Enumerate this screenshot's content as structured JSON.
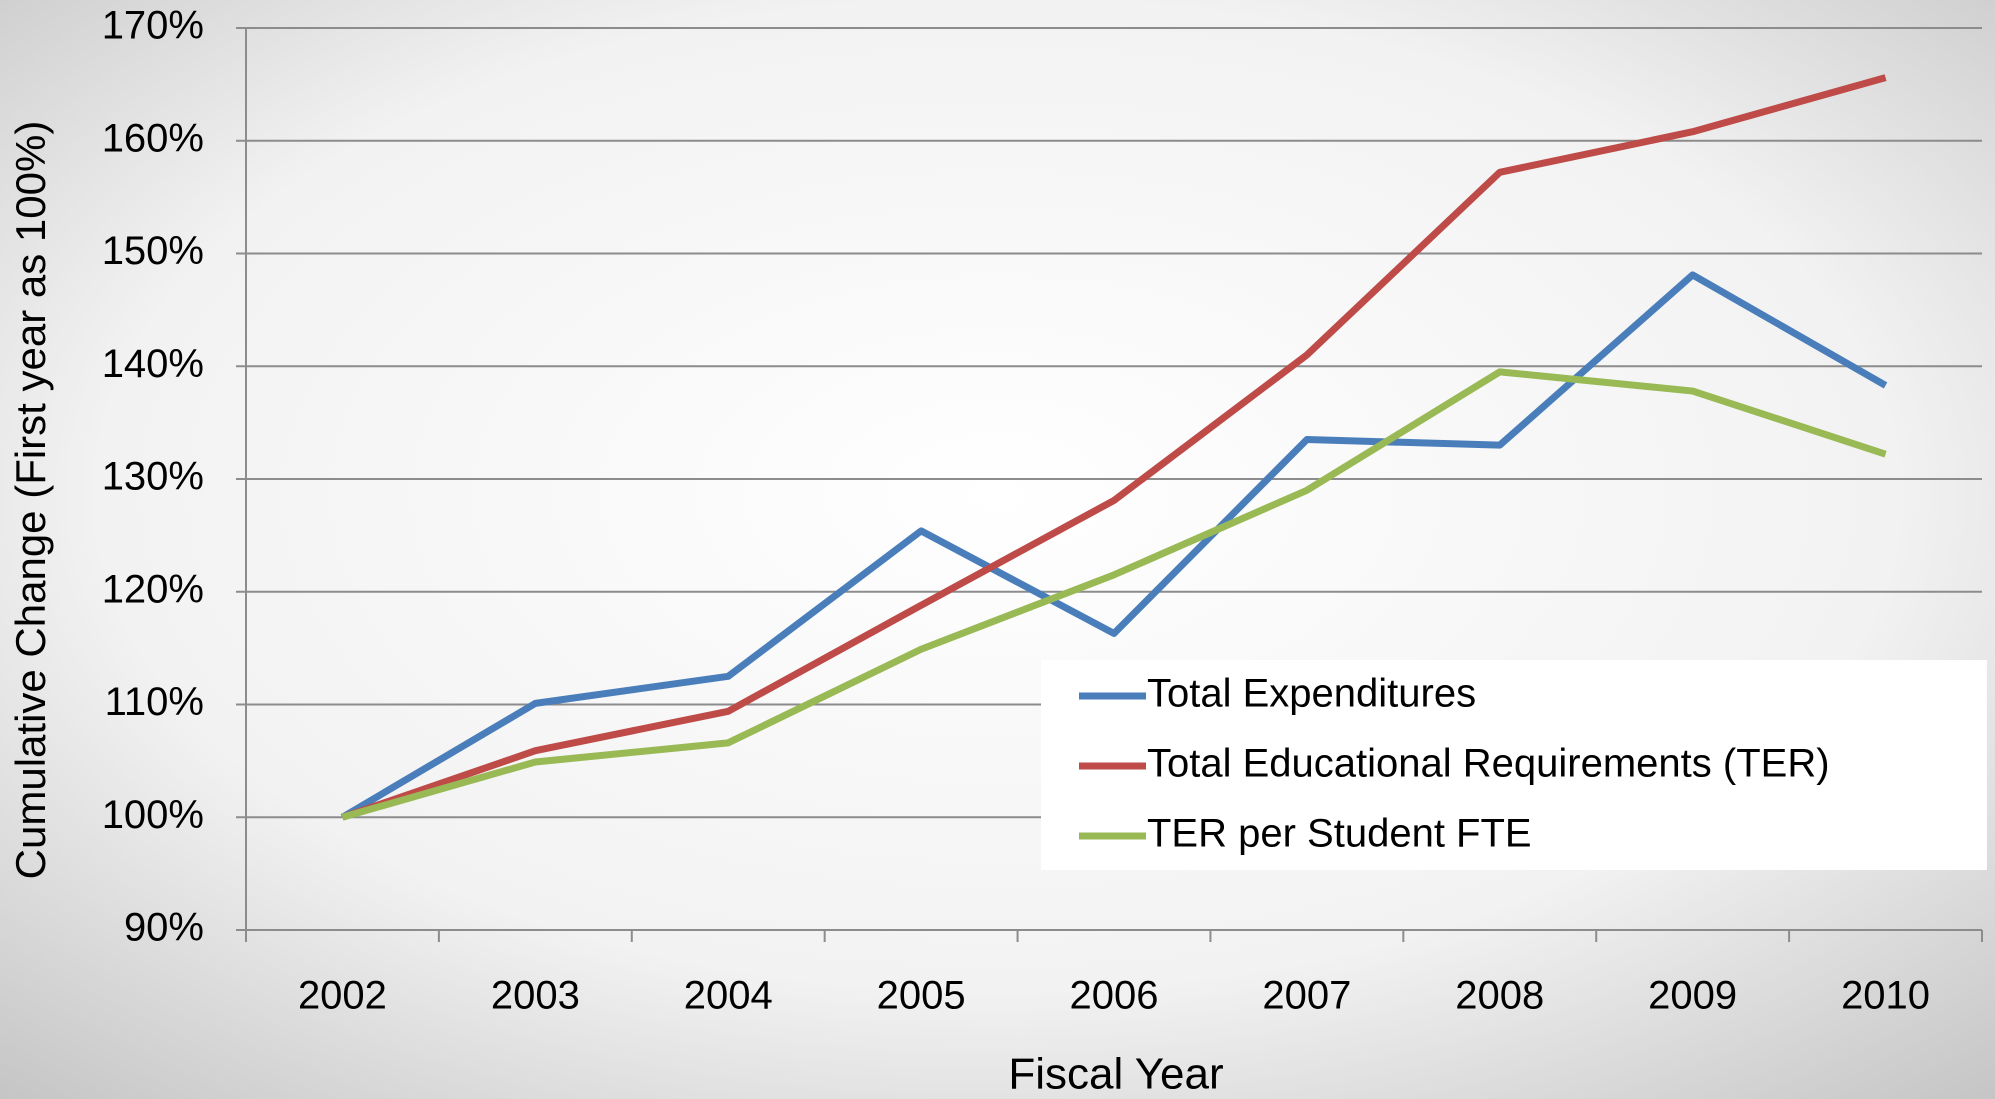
{
  "chart_data": {
    "type": "line",
    "x_label": "Fiscal Year",
    "y_label": "Cumulative Change (First year as 100%)",
    "categories": [
      "2002",
      "2003",
      "2004",
      "2005",
      "2006",
      "2007",
      "2008",
      "2009",
      "2010"
    ],
    "series": [
      {
        "name": "Total Expenditures",
        "color": "#4a7ebb",
        "values": [
          100,
          110.1,
          112.5,
          125.4,
          116.3,
          133.5,
          133.0,
          148.1,
          138.3
        ]
      },
      {
        "name": "Total Educational Requirements (TER)",
        "color": "#be4b48",
        "values": [
          100,
          105.9,
          109.4,
          118.8,
          128.1,
          141.0,
          157.2,
          160.8,
          165.6
        ]
      },
      {
        "name": "TER per Student FTE",
        "color": "#98b954",
        "values": [
          100,
          104.9,
          106.6,
          114.9,
          121.5,
          129.0,
          139.5,
          137.8,
          132.2
        ]
      }
    ],
    "ylim": [
      90,
      170
    ],
    "yticks": [
      {
        "value": 90,
        "label": "90%"
      },
      {
        "value": 100,
        "label": "100%"
      },
      {
        "value": 110,
        "label": "110%"
      },
      {
        "value": 120,
        "label": "120%"
      },
      {
        "value": 130,
        "label": "130%"
      },
      {
        "value": 140,
        "label": "140%"
      },
      {
        "value": 150,
        "label": "150%"
      },
      {
        "value": 160,
        "label": "160%"
      },
      {
        "value": 170,
        "label": "170%"
      }
    ],
    "grid": true,
    "legend_position": "lower right"
  }
}
